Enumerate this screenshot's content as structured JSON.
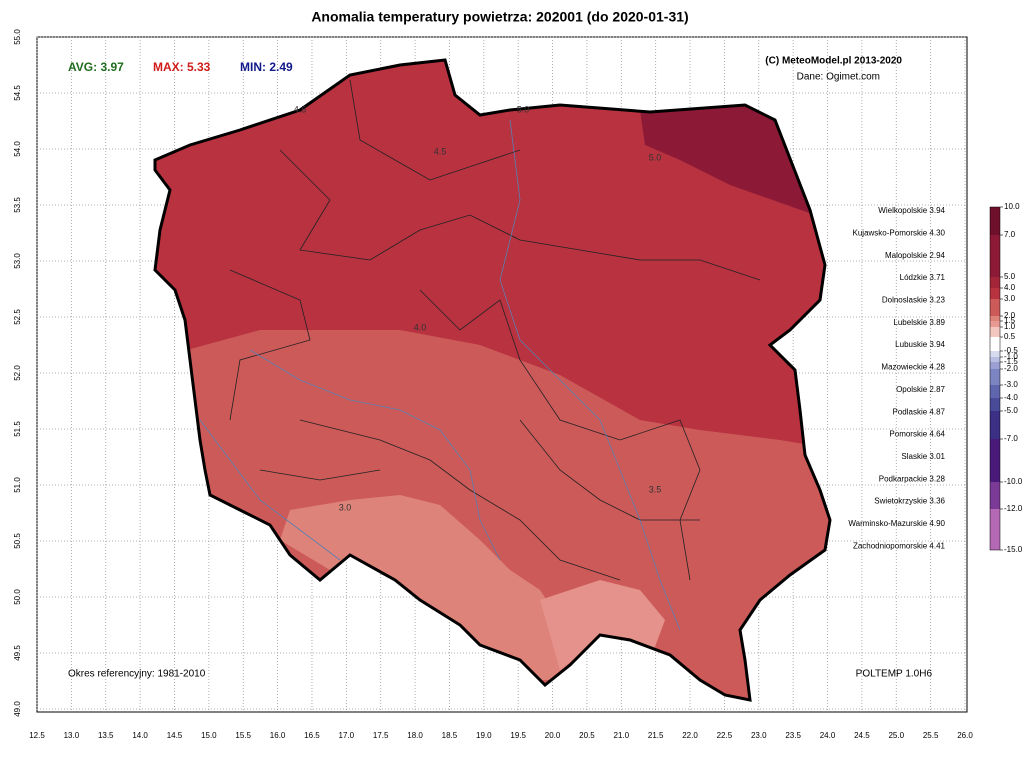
{
  "title": "Anomalia temperatury powietrza:  202001 (do 2020-01-31)",
  "stats": {
    "avg": "AVG: 3.97",
    "max": "MAX: 5.33",
    "min": "MIN: 2.49"
  },
  "credits": {
    "copyright": "(C) MeteoModel.pl 2013-2020",
    "source": "Dane: Ogimet.com"
  },
  "reference": "Okres referencyjny: 1981-2010",
  "model": "POLTEMP 1.0H6",
  "regions": [
    "Wielkopolskie 3.94",
    "Kujawsko-Pomorskie 4.30",
    "Malopolskie 2.94",
    "Lódzkie 3.71",
    "Dolnoslaskie 3.23",
    "Lubelskie 3.89",
    "Lubuskie 3.94",
    "Mazowieckie 4.28",
    "Opolskie 2.87",
    "Podlaskie 4.87",
    "Pomorskie 4.64",
    "Slaskie 3.01",
    "Podkarpackie 3.28",
    "Swietokrzyskie 3.36",
    "Warminsko-Mazurskie 4.90",
    "Zachodniopomorskie 4.41"
  ],
  "contour_labels": [
    "4.5",
    "4.5",
    "5.0",
    "5.0",
    "4.0",
    "3.5",
    "3.0"
  ],
  "colorbar": {
    "ticks": [
      {
        "value": 10,
        "label": "10.0"
      },
      {
        "value": 7,
        "label": "7.0"
      },
      {
        "value": 5,
        "label": "5.0"
      },
      {
        "value": 4,
        "label": "4.0"
      },
      {
        "value": 3,
        "label": "3.0"
      },
      {
        "value": 2,
        "label": "2.0"
      },
      {
        "value": 1.5,
        "label": "1.5"
      },
      {
        "value": 1,
        "label": "1.0"
      },
      {
        "value": 0.5,
        "label": "0.5"
      },
      {
        "value": -0.5,
        "label": "-0.5"
      },
      {
        "value": -1,
        "label": "-1.0"
      },
      {
        "value": -1.5,
        "label": "-1.5"
      },
      {
        "value": -2,
        "label": "-2.0"
      },
      {
        "value": -3,
        "label": "-3.0"
      },
      {
        "value": -4,
        "label": "-4.0"
      },
      {
        "value": -5,
        "label": "-5.0"
      },
      {
        "value": -7,
        "label": "-7.0"
      },
      {
        "value": -10,
        "label": "-10.0"
      },
      {
        "value": -12,
        "label": "-12.0"
      },
      {
        "value": -15,
        "label": "-15.0"
      }
    ]
  },
  "xticks": [
    {
      "value": 12.5,
      "label": "12.5"
    },
    {
      "value": 13,
      "label": "13.0"
    },
    {
      "value": 13.5,
      "label": "13.5"
    },
    {
      "value": 14,
      "label": "14.0"
    },
    {
      "value": 14.5,
      "label": "14.5"
    },
    {
      "value": 15,
      "label": "15.0"
    },
    {
      "value": 15.5,
      "label": "15.5"
    },
    {
      "value": 16,
      "label": "16.0"
    },
    {
      "value": 16.5,
      "label": "16.5"
    },
    {
      "value": 17,
      "label": "17.0"
    },
    {
      "value": 17.5,
      "label": "17.5"
    },
    {
      "value": 18,
      "label": "18.0"
    },
    {
      "value": 18.5,
      "label": "18.5"
    },
    {
      "value": 19,
      "label": "19.0"
    },
    {
      "value": 19.5,
      "label": "19.5"
    },
    {
      "value": 20,
      "label": "20.0"
    },
    {
      "value": 20.5,
      "label": "20.5"
    },
    {
      "value": 21,
      "label": "21.0"
    },
    {
      "value": 21.5,
      "label": "21.5"
    },
    {
      "value": 22,
      "label": "22.0"
    },
    {
      "value": 22.5,
      "label": "22.5"
    },
    {
      "value": 23,
      "label": "23.0"
    },
    {
      "value": 23.5,
      "label": "23.5"
    },
    {
      "value": 24,
      "label": "24.0"
    },
    {
      "value": 24.5,
      "label": "24.5"
    },
    {
      "value": 25,
      "label": "25.0"
    },
    {
      "value": 25.5,
      "label": "25.5"
    },
    {
      "value": 26,
      "label": "26.0"
    }
  ],
  "yticks": [
    {
      "value": 55,
      "label": "55.0"
    },
    {
      "value": 54.5,
      "label": "54.5"
    },
    {
      "value": 54,
      "label": "54.0"
    },
    {
      "value": 53.5,
      "label": "53.5"
    },
    {
      "value": 53,
      "label": "53.0"
    },
    {
      "value": 52.5,
      "label": "52.5"
    },
    {
      "value": 52,
      "label": "52.0"
    },
    {
      "value": 51.5,
      "label": "51.5"
    },
    {
      "value": 51,
      "label": "51.0"
    },
    {
      "value": 50.5,
      "label": "50.5"
    },
    {
      "value": 50,
      "label": "50.0"
    },
    {
      "value": 49.5,
      "label": "49.5"
    },
    {
      "value": 49,
      "label": "49.0"
    }
  ]
}
